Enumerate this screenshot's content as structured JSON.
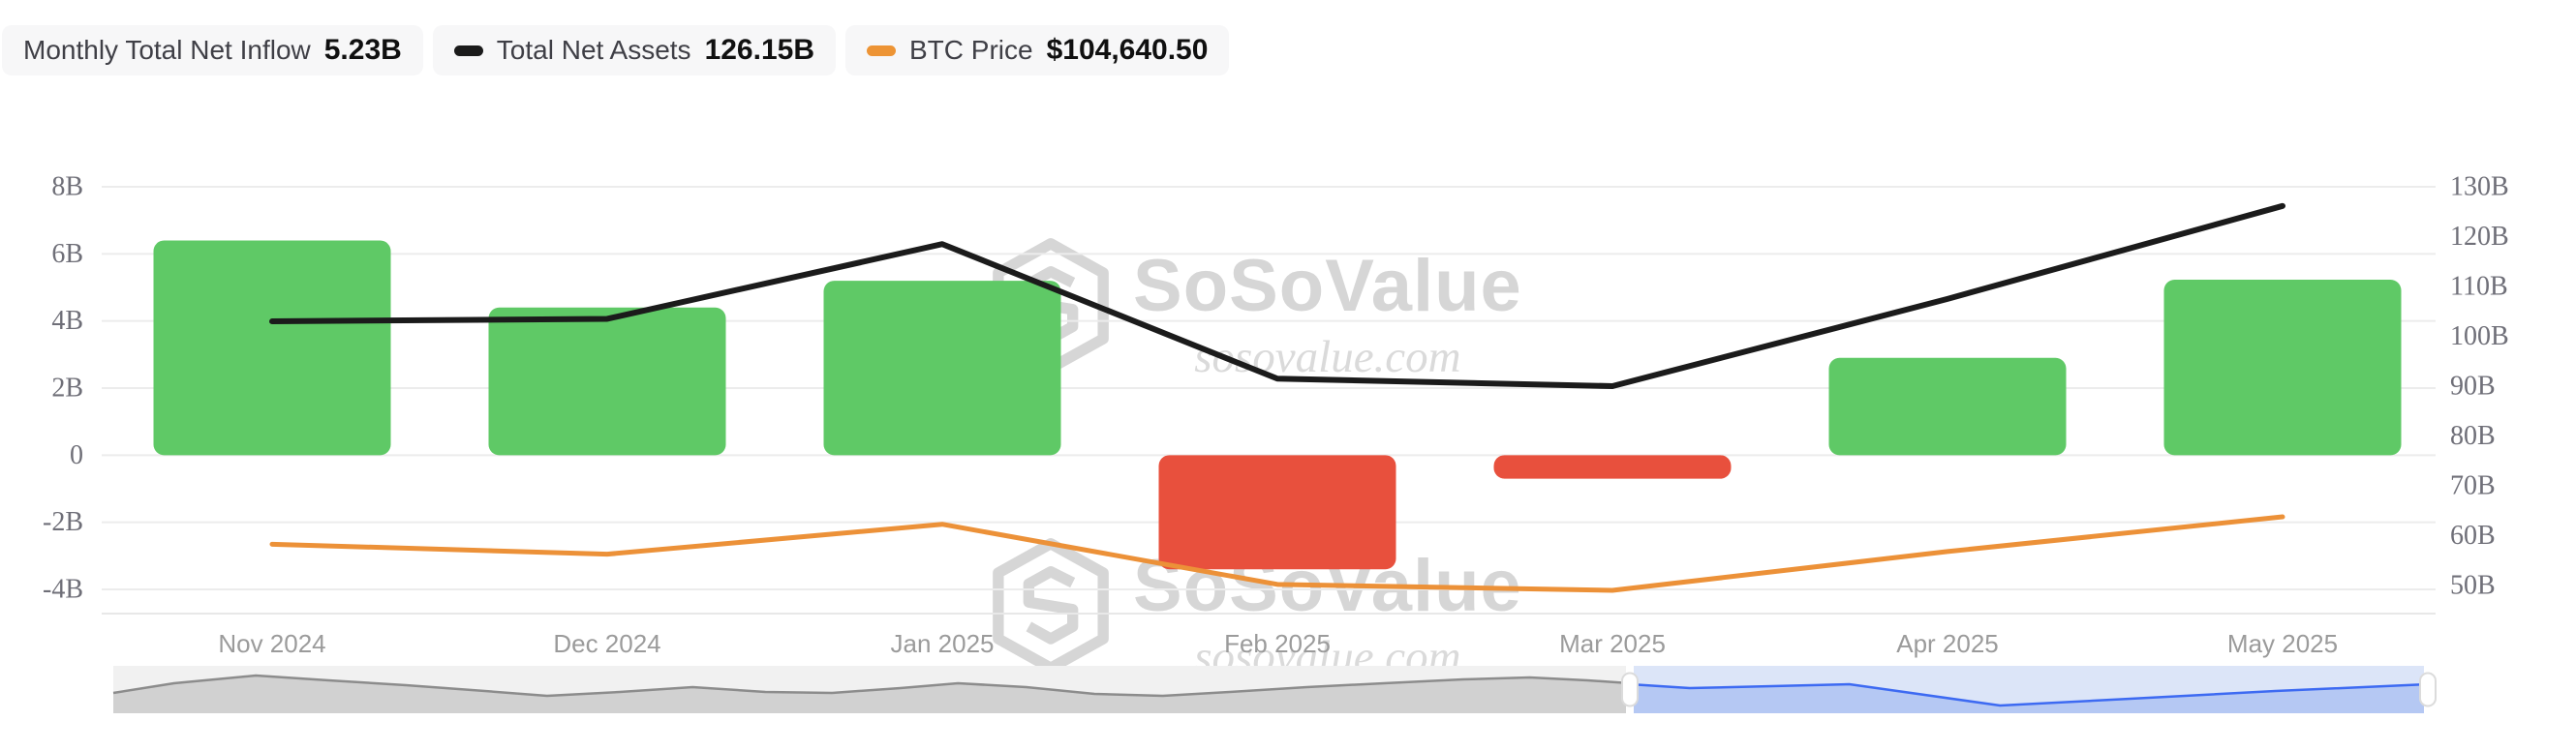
{
  "legend": {
    "items": [
      {
        "id": "monthly-total-net-inflow",
        "label": "Monthly Total Net Inflow",
        "value": "5.23B",
        "marker": null
      },
      {
        "id": "total-net-assets",
        "label": "Total Net Assets",
        "value": "126.15B",
        "marker": "#1B1B1B"
      },
      {
        "id": "btc-price",
        "label": "BTC Price",
        "value": "$104,640.50",
        "marker": "#ED9435"
      }
    ]
  },
  "watermark": {
    "brand": "SoSoValue",
    "domain": "sosovalue.com"
  },
  "chart_data": {
    "type": "bar",
    "title": "",
    "categories": [
      "Nov 2024",
      "Dec 2024",
      "Jan 2025",
      "Feb 2025",
      "Mar 2025",
      "Apr 2025",
      "May 2025"
    ],
    "series": [
      {
        "name": "Monthly Total Net Inflow",
        "type": "bar",
        "axis": "left",
        "unit": "B USD",
        "values": [
          6.4,
          4.4,
          5.2,
          -3.4,
          -0.7,
          2.9,
          5.23
        ],
        "positive_color": "#5FC966",
        "negative_color": "#E8503D"
      },
      {
        "name": "Total Net Assets",
        "type": "line",
        "axis": "right",
        "unit": "B USD",
        "values": [
          103,
          103.5,
          118.5,
          91.5,
          90,
          107.5,
          126.15
        ],
        "color": "#1B1B1B"
      },
      {
        "name": "BTC Price",
        "type": "line",
        "axis": "hidden",
        "unit": "USD",
        "values": [
          96400,
          93400,
          102400,
          84300,
          82500,
          94200,
          104640.5
        ],
        "color": "#EC9138",
        "hidden_axis_range": [
          82800,
          204000
        ]
      }
    ],
    "left_axis": {
      "ticks": [
        "8B",
        "6B",
        "4B",
        "2B",
        "0",
        "-2B",
        "-4B"
      ],
      "max": 8,
      "min": -4
    },
    "right_axis": {
      "ticks": [
        "130B",
        "120B",
        "110B",
        "100B",
        "90B",
        "80B",
        "70B",
        "60B",
        "50B"
      ],
      "max": 130,
      "min": 50
    },
    "grid": true,
    "legend_position": "top-left"
  },
  "navigator": {
    "unselected": {
      "bg": "#F1F1F1",
      "fill": "#D1D1D1",
      "line": "#8C8C8C",
      "points": [
        [
          0,
          0.571
        ],
        [
          0.04,
          0.367
        ],
        [
          0.094,
          0.204
        ],
        [
          0.142,
          0.306
        ],
        [
          0.193,
          0.408
        ],
        [
          0.245,
          0.531
        ],
        [
          0.286,
          0.633
        ],
        [
          0.334,
          0.551
        ],
        [
          0.382,
          0.449
        ],
        [
          0.43,
          0.551
        ],
        [
          0.474,
          0.571
        ],
        [
          0.519,
          0.469
        ],
        [
          0.557,
          0.367
        ],
        [
          0.602,
          0.449
        ],
        [
          0.647,
          0.592
        ],
        [
          0.692,
          0.633
        ],
        [
          0.736,
          0.551
        ],
        [
          0.787,
          0.449
        ],
        [
          0.838,
          0.367
        ],
        [
          0.89,
          0.286
        ],
        [
          0.934,
          0.245
        ],
        [
          0.972,
          0.306
        ],
        [
          1,
          0.367
        ]
      ]
    },
    "selected": {
      "bg": "#DCE5F8",
      "fill": "#B5C8F3",
      "line": "#3D6AF2",
      "points": [
        [
          0,
          0.388
        ],
        [
          0.075,
          0.469
        ],
        [
          0.178,
          0.429
        ],
        [
          0.275,
          0.388
        ],
        [
          0.464,
          0.837
        ],
        [
          0.627,
          0.694
        ],
        [
          0.809,
          0.531
        ],
        [
          1,
          0.388
        ]
      ]
    }
  }
}
